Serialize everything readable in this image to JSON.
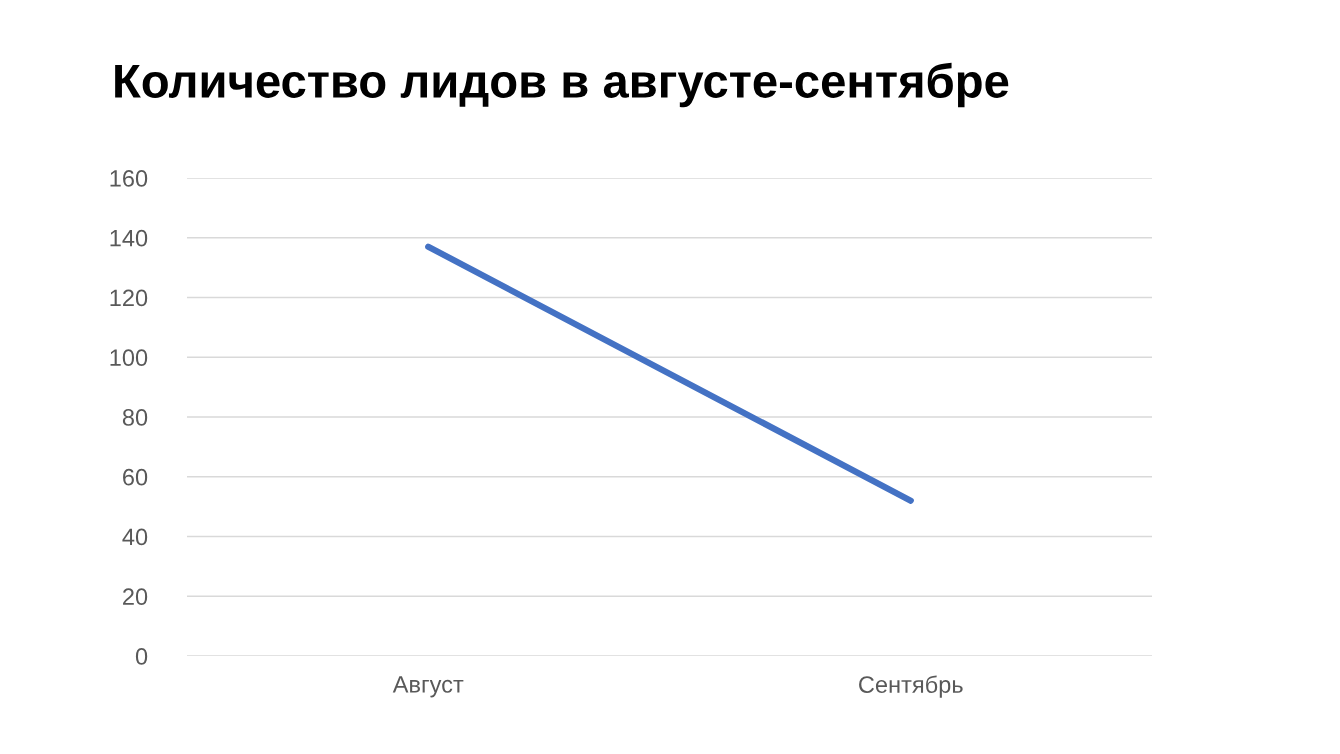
{
  "chart_data": {
    "type": "line",
    "title": "Количество лидов в августе-сентябре",
    "categories": [
      "Август",
      "Сентябрь"
    ],
    "series": [
      {
        "color": "#4472c4",
        "values": [
          137,
          52
        ]
      }
    ],
    "ylim": [
      0,
      160
    ],
    "yticks": [
      0,
      20,
      40,
      60,
      80,
      100,
      120,
      140,
      160
    ],
    "grid": "y",
    "marker": "none",
    "line_style": "solid"
  }
}
